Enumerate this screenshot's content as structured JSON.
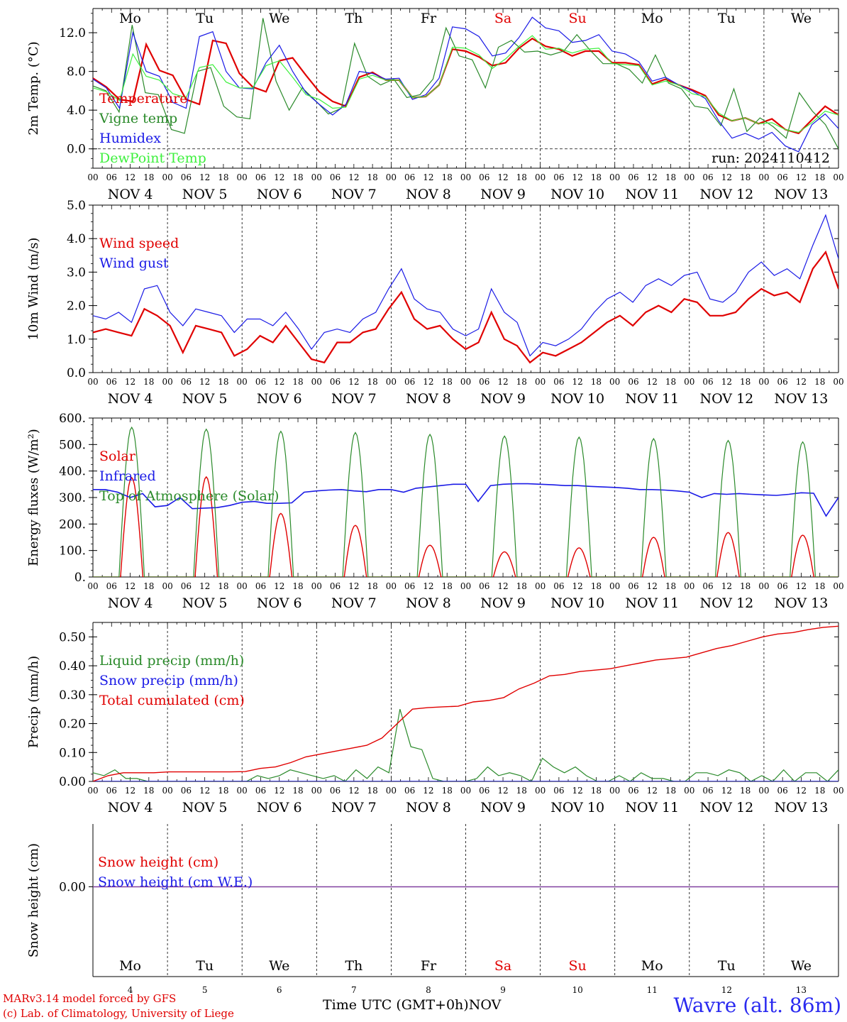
{
  "chart_data": [
    {
      "type": "line",
      "ylabel": "2m Temp. (°C)",
      "ylim": [
        -2,
        14.5
      ],
      "yticks": [
        "0.0",
        "4.0",
        "8.0",
        "12.0"
      ],
      "ytick_values": [
        0,
        4,
        8,
        12
      ],
      "zero_dashed": true,
      "annotation": "run: 2024110412",
      "day_labels": [
        "Mo",
        "Tu",
        "We",
        "Th",
        "Fr",
        "Sa",
        "Su",
        "Mo",
        "Tu",
        "We"
      ],
      "day_label_colors": [
        "#000000",
        "#000000",
        "#000000",
        "#000000",
        "#000000",
        "#e00000",
        "#e00000",
        "#000000",
        "#000000",
        "#000000"
      ],
      "series": [
        {
          "name": "Temperature",
          "color": "#e00000",
          "width": 2.2,
          "values": [
            7.3,
            6.4,
            5.1,
            4.9,
            10.8,
            8.1,
            7.6,
            5.1,
            4.6,
            11.2,
            10.9,
            7.8,
            6.4,
            5.9,
            9.1,
            9.4,
            7.6,
            5.9,
            4.9,
            4.4,
            7.4,
            7.9,
            7.1,
            7.1,
            5.3,
            5.4,
            6.6,
            10.3,
            10.1,
            9.5,
            8.6,
            8.9,
            10.4,
            11.4,
            10.6,
            10.3,
            9.6,
            10.1,
            10.1,
            8.9,
            8.9,
            8.7,
            6.7,
            7.2,
            6.6,
            6.1,
            5.5,
            3.5,
            2.9,
            3.2,
            2.6,
            3.1,
            2.0,
            1.6,
            3.0,
            4.4,
            3.5
          ]
        },
        {
          "name": "Vigne temp",
          "color": "#2a8a2a",
          "width": 1.2,
          "values": [
            6.5,
            6.0,
            3.8,
            12.8,
            5.8,
            5.6,
            2.0,
            1.6,
            8.0,
            8.4,
            4.4,
            3.3,
            3.1,
            13.5,
            7.0,
            4.0,
            6.3,
            5.0,
            3.6,
            4.2,
            10.9,
            7.5,
            6.6,
            7.2,
            5.3,
            5.6,
            7.2,
            12.5,
            9.6,
            9.2,
            6.3,
            10.5,
            11.2,
            10.0,
            10.1,
            9.7,
            10.1,
            11.8,
            10.2,
            8.8,
            8.8,
            8.2,
            6.8,
            9.7,
            6.8,
            6.2,
            4.4,
            4.2,
            2.4,
            6.2,
            1.8,
            3.2,
            2.3,
            1.1,
            5.8,
            3.9,
            2.5,
            0.0
          ]
        },
        {
          "name": "Humidex",
          "color": "#1a1ae6",
          "width": 1.2,
          "values": [
            7.2,
            6.3,
            4.2,
            12.0,
            8.0,
            7.5,
            4.8,
            4.2,
            11.6,
            12.1,
            8.0,
            6.3,
            6.2,
            8.9,
            10.7,
            8.0,
            5.8,
            4.6,
            3.5,
            4.6,
            8.0,
            7.8,
            7.2,
            7.3,
            5.1,
            5.6,
            7.3,
            12.6,
            12.4,
            11.6,
            9.6,
            9.9,
            11.5,
            13.6,
            12.5,
            12.2,
            11.0,
            11.2,
            11.8,
            10.1,
            9.8,
            9.0,
            7.0,
            7.4,
            6.6,
            6.0,
            5.2,
            2.9,
            1.1,
            1.6,
            1.0,
            1.7,
            0.3,
            -0.3,
            2.5,
            3.6,
            2.1
          ]
        },
        {
          "name": "DewPoint Temp",
          "color": "#3ef03e",
          "width": 1.2,
          "values": [
            6.3,
            5.9,
            5.0,
            9.8,
            7.5,
            7.1,
            5.7,
            5.3,
            8.4,
            8.7,
            6.9,
            6.3,
            6.3,
            8.6,
            9.1,
            7.4,
            5.6,
            5.1,
            4.2,
            4.3,
            7.2,
            7.6,
            7.1,
            7.1,
            5.3,
            5.4,
            6.6,
            10.5,
            10.4,
            9.7,
            8.3,
            9.3,
            10.6,
            11.7,
            10.3,
            10.4,
            9.9,
            10.3,
            10.4,
            8.8,
            8.7,
            8.6,
            6.6,
            7.0,
            6.6,
            5.7,
            5.4,
            3.7,
            2.9,
            3.2,
            2.6,
            2.7,
            2.0,
            1.7,
            2.7,
            3.9,
            3.5
          ]
        }
      ],
      "legend": [
        "Temperature",
        "Vigne temp",
        "Humidex",
        "DewPoint Temp"
      ]
    },
    {
      "type": "line",
      "ylabel": "10m Wind (m/s)",
      "ylim": [
        0,
        5.0
      ],
      "yticks": [
        "0.0",
        "1.0",
        "2.0",
        "3.0",
        "4.0",
        "5.0"
      ],
      "ytick_values": [
        0,
        1,
        2,
        3,
        4,
        5
      ],
      "series": [
        {
          "name": "Wind speed",
          "color": "#e00000",
          "width": 2.2,
          "values": [
            1.2,
            1.3,
            1.2,
            1.1,
            1.9,
            1.7,
            1.4,
            0.6,
            1.4,
            1.3,
            1.2,
            0.5,
            0.7,
            1.1,
            0.9,
            1.4,
            0.9,
            0.4,
            0.3,
            0.9,
            0.9,
            1.2,
            1.3,
            1.9,
            2.4,
            1.6,
            1.3,
            1.4,
            1.0,
            0.7,
            0.9,
            1.8,
            1.0,
            0.8,
            0.3,
            0.6,
            0.5,
            0.7,
            0.9,
            1.2,
            1.5,
            1.7,
            1.4,
            1.8,
            2.0,
            1.8,
            2.2,
            2.1,
            1.7,
            1.7,
            1.8,
            2.2,
            2.5,
            2.3,
            2.4,
            2.1,
            3.1,
            3.6,
            2.5
          ]
        },
        {
          "name": "Wind gust",
          "color": "#1a1ae6",
          "width": 1.2,
          "values": [
            1.7,
            1.6,
            1.8,
            1.5,
            2.5,
            2.6,
            1.8,
            1.4,
            1.9,
            1.8,
            1.7,
            1.2,
            1.6,
            1.6,
            1.4,
            1.8,
            1.3,
            0.7,
            1.2,
            1.3,
            1.2,
            1.6,
            1.8,
            2.5,
            3.1,
            2.2,
            1.9,
            1.8,
            1.3,
            1.1,
            1.3,
            2.5,
            1.8,
            1.5,
            0.5,
            0.9,
            0.8,
            1.0,
            1.3,
            1.8,
            2.2,
            2.4,
            2.1,
            2.6,
            2.8,
            2.6,
            2.9,
            3.0,
            2.2,
            2.1,
            2.4,
            3.0,
            3.3,
            2.9,
            3.1,
            2.8,
            3.8,
            4.7,
            3.4
          ]
        }
      ],
      "legend": [
        "Wind speed",
        "Wind gust"
      ]
    },
    {
      "type": "line",
      "ylabel": "Energy fluxes (W/m²)",
      "ylim": [
        0,
        600
      ],
      "yticks": [
        "0.",
        "100.",
        "200.",
        "300.",
        "400.",
        "500.",
        "600."
      ],
      "ytick_values": [
        0,
        100,
        200,
        300,
        400,
        500,
        600
      ],
      "series": [
        {
          "name": "Solar",
          "color": "#e00000",
          "width": 1.4,
          "peaks": [
            375,
            378,
            240,
            195,
            120,
            95,
            110,
            150,
            168,
            158
          ]
        },
        {
          "name": "Infrared",
          "color": "#1a1ae6",
          "width": 1.6,
          "values": [
            330,
            330,
            320,
            300,
            315,
            265,
            270,
            300,
            258,
            260,
            262,
            270,
            282,
            285,
            278,
            278,
            280,
            320,
            325,
            328,
            330,
            325,
            322,
            330,
            330,
            320,
            335,
            340,
            345,
            350,
            350,
            285,
            345,
            350,
            352,
            352,
            350,
            348,
            345,
            345,
            342,
            340,
            338,
            335,
            330,
            330,
            328,
            325,
            320,
            300,
            315,
            312,
            315,
            312,
            310,
            308,
            312,
            318,
            316,
            230,
            300
          ]
        },
        {
          "name": "Top of Atmosphere (Solar)",
          "color": "#2a8a2a",
          "width": 1.2,
          "peaks": [
            565,
            558,
            550,
            545,
            538,
            532,
            528,
            522,
            515,
            510
          ]
        }
      ],
      "legend": [
        "Solar",
        "Infrared",
        "Top of Atmosphere (Solar)"
      ]
    },
    {
      "type": "line",
      "ylabel": "Precip (mm/h)",
      "ylim": [
        0,
        0.55
      ],
      "yticks": [
        "0.00",
        "0.10",
        "0.20",
        "0.30",
        "0.40",
        "0.50"
      ],
      "ytick_values": [
        0,
        0.1,
        0.2,
        0.3,
        0.4,
        0.5
      ],
      "series": [
        {
          "name": "Liquid precip (mm/h)",
          "color": "#2a8a2a",
          "width": 1.2,
          "values": [
            0.03,
            0.02,
            0.04,
            0.01,
            0.01,
            0.0,
            0.0,
            0.0,
            0.0,
            0.0,
            0.0,
            0.0,
            0.0,
            0.0,
            0.0,
            0.02,
            0.01,
            0.02,
            0.04,
            0.03,
            0.02,
            0.01,
            0.02,
            0.0,
            0.04,
            0.01,
            0.05,
            0.03,
            0.25,
            0.12,
            0.11,
            0.01,
            0.0,
            0.0,
            0.0,
            0.01,
            0.05,
            0.02,
            0.03,
            0.02,
            0.0,
            0.08,
            0.05,
            0.03,
            0.05,
            0.02,
            0.0,
            0.0,
            0.02,
            0.0,
            0.03,
            0.01,
            0.01,
            0.0,
            0.0,
            0.03,
            0.03,
            0.02,
            0.04,
            0.03,
            0.0,
            0.02,
            0.0,
            0.04,
            0.0,
            0.03,
            0.03,
            0.0,
            0.04
          ]
        },
        {
          "name": "Snow precip (mm/h)",
          "color": "#1a1ae6",
          "width": 1.4,
          "values": [
            0,
            0
          ]
        },
        {
          "name": "Total cumulated (cm)",
          "color": "#e00000",
          "width": 1.4,
          "values": [
            0.0,
            0.02,
            0.03,
            0.03,
            0.03,
            0.033,
            0.033,
            0.033,
            0.033,
            0.033,
            0.034,
            0.045,
            0.05,
            0.065,
            0.085,
            0.095,
            0.105,
            0.115,
            0.125,
            0.15,
            0.2,
            0.25,
            0.255,
            0.258,
            0.26,
            0.275,
            0.28,
            0.29,
            0.32,
            0.34,
            0.365,
            0.37,
            0.38,
            0.385,
            0.39,
            0.4,
            0.41,
            0.42,
            0.425,
            0.43,
            0.445,
            0.46,
            0.47,
            0.485,
            0.5,
            0.51,
            0.515,
            0.525,
            0.533,
            0.537
          ]
        }
      ],
      "legend": [
        "Liquid precip (mm/h)",
        "Snow precip (mm/h)",
        "Total cumulated (cm)"
      ]
    },
    {
      "type": "line",
      "ylabel": "Snow height (cm)",
      "yticks": [
        "0.00"
      ],
      "series": [
        {
          "name": "Snow height (cm)",
          "color": "#e00000",
          "values": [
            0,
            0
          ]
        },
        {
          "name": "Snow height (cm W.E.)",
          "color": "#1a1ae6",
          "values": [
            0,
            0
          ]
        }
      ],
      "legend": [
        "Snow height (cm)",
        "Snow height (cm W.E.)"
      ],
      "day_labels": [
        "Mo",
        "Tu",
        "We",
        "Th",
        "Fr",
        "Sa",
        "Su",
        "Mo",
        "Tu",
        "We"
      ],
      "day_numbers": [
        "4",
        "5",
        "6",
        "7",
        "8",
        "9",
        "10",
        "11",
        "12",
        "13"
      ]
    }
  ],
  "x_axis": {
    "hour_ticks": [
      "00",
      "06",
      "12",
      "18"
    ],
    "final_tick": "00",
    "date_labels": [
      "NOV 4",
      "NOV 5",
      "NOV 6",
      "NOV 7",
      "NOV 8",
      "NOV 9",
      "NOV 10",
      "NOV 11",
      "NOV 12",
      "NOV 13"
    ],
    "month_label": "NOV",
    "axis_title": "Time UTC (GMT+0h)"
  },
  "footer": {
    "model_line": "MARv3.14 model forced by GFS",
    "copyright_line": "(c) Lab. of Climatology, University of Liege",
    "station_title": "Wavre (alt. 86m)"
  },
  "colors": {
    "red": "#e00000",
    "green": "#2a8a2a",
    "blue": "#1a1ae6",
    "lightgreen": "#3ef03e",
    "title_blue": "#2a2af0"
  }
}
